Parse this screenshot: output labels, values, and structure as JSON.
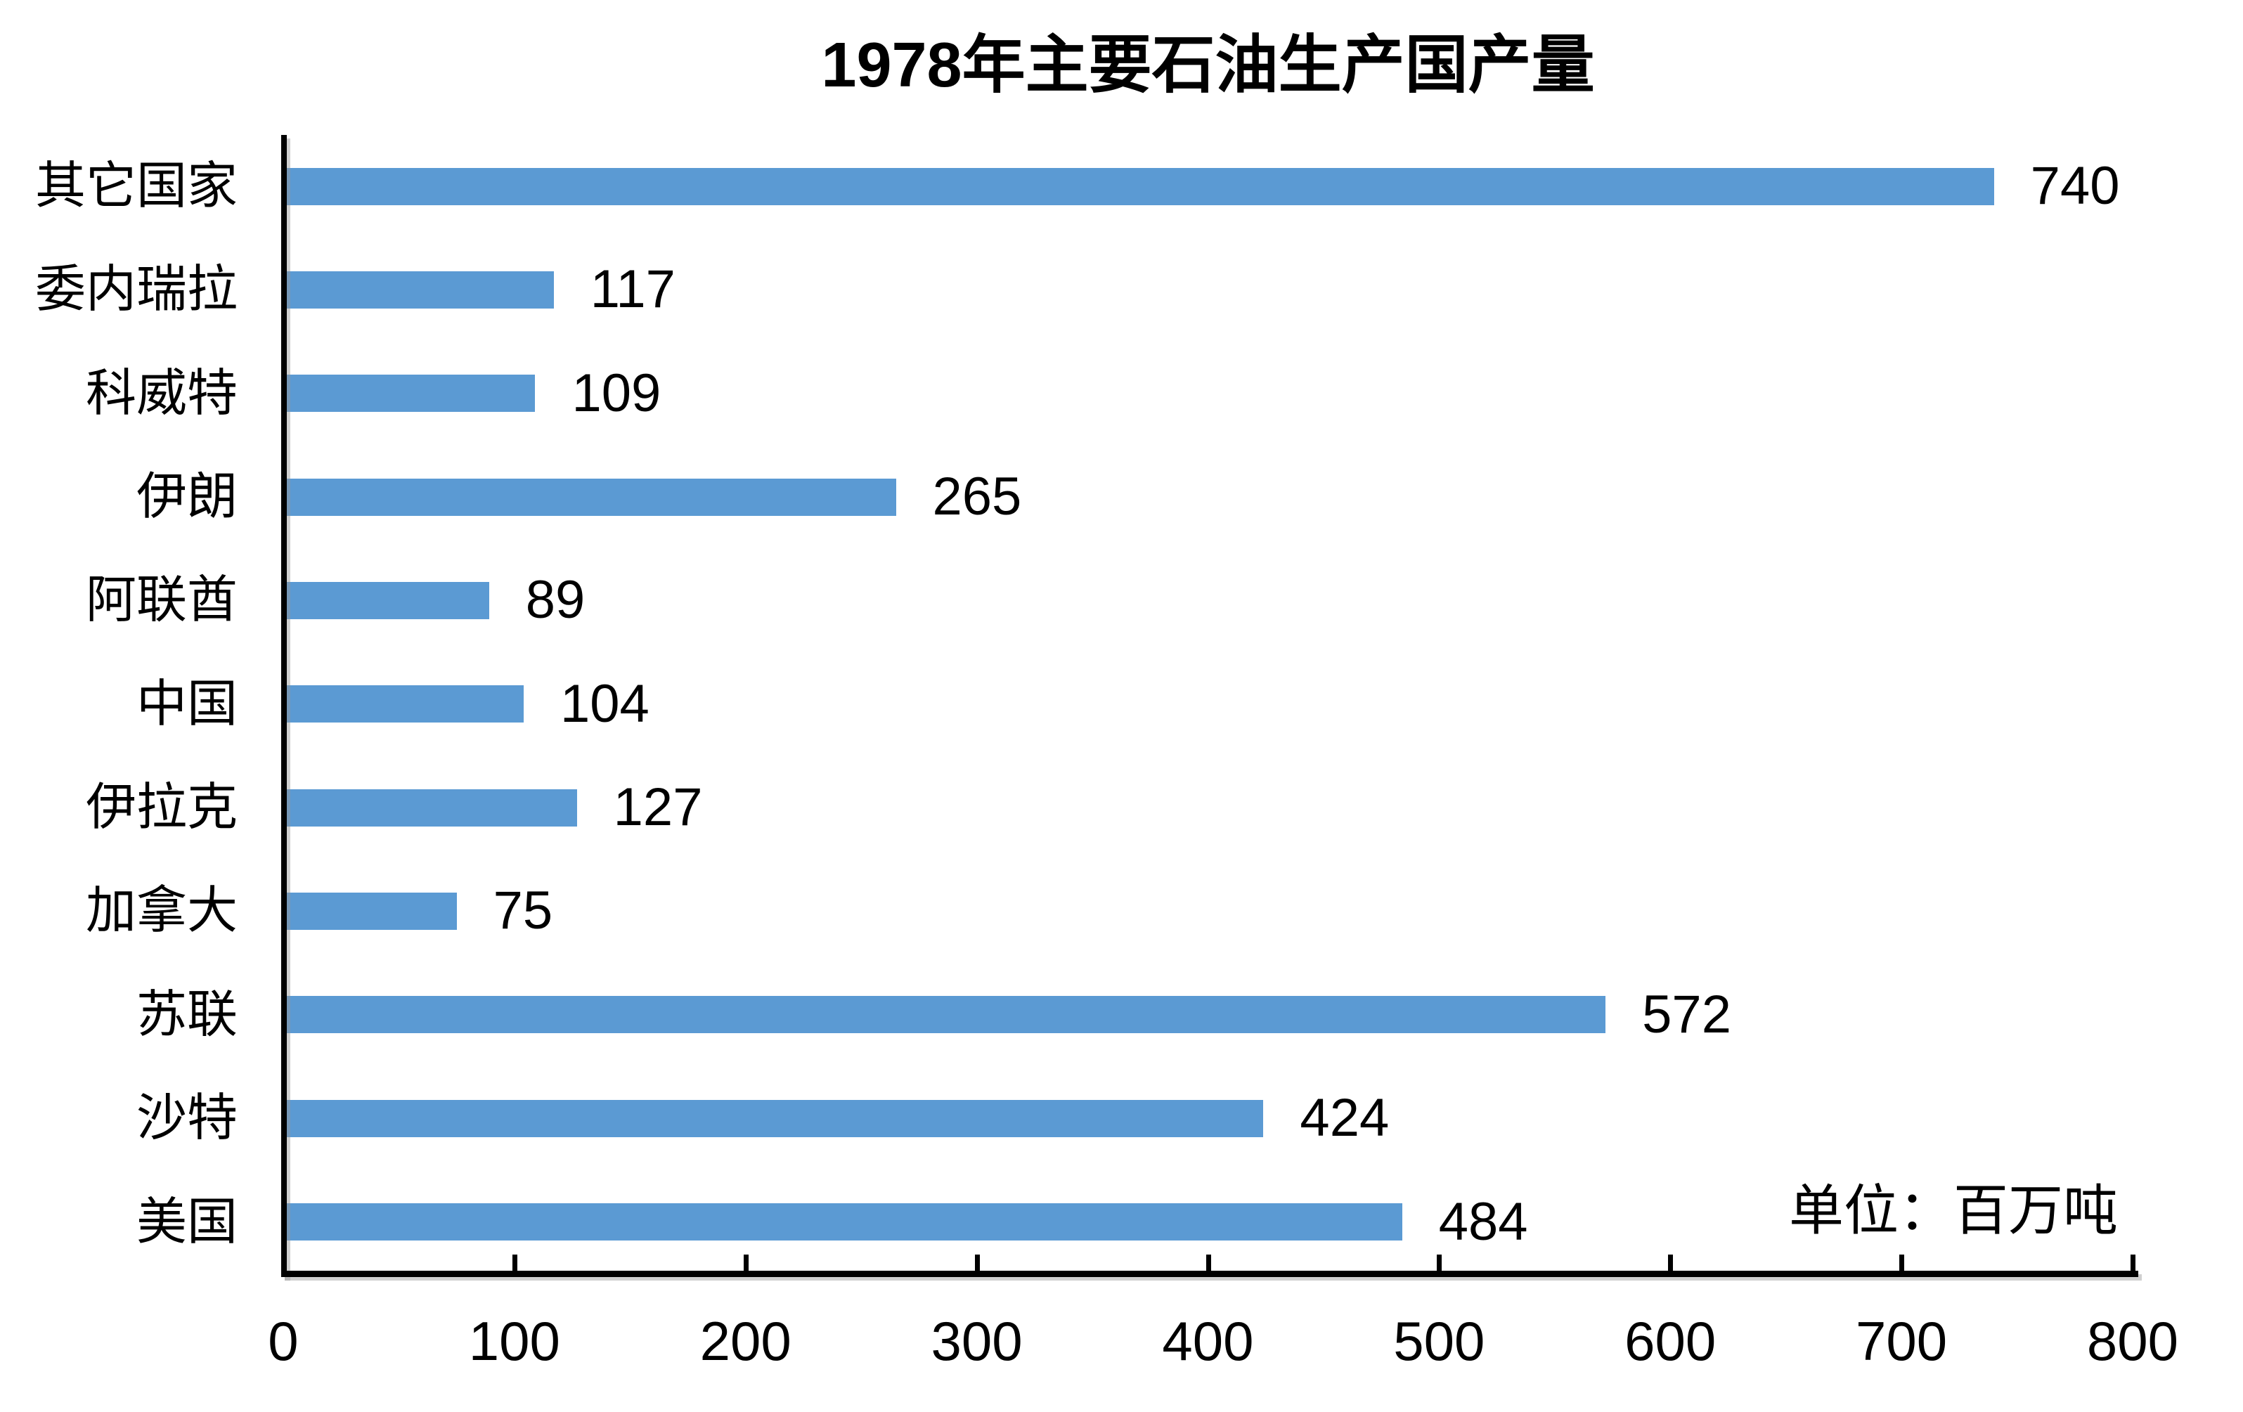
{
  "chart_data": {
    "type": "bar",
    "orientation": "horizontal",
    "title": "1978年主要石油生产国产量",
    "unit_note": "单位：百万吨",
    "categories": [
      "其它国家",
      "委内瑞拉",
      "科威特",
      "伊朗",
      "阿联酋",
      "中国",
      "伊拉克",
      "加拿大",
      "苏联",
      "沙特",
      "美国"
    ],
    "values": [
      740,
      117,
      109,
      265,
      89,
      104,
      127,
      75,
      572,
      424,
      484
    ],
    "xlabel": "",
    "ylabel": "",
    "xlim": [
      0,
      800
    ],
    "x_ticks": [
      0,
      100,
      200,
      300,
      400,
      500,
      600,
      700,
      800
    ],
    "value_labels_shown": true,
    "grid": false,
    "legend_position": "none",
    "bar_color": "#5B9AD3",
    "axis_color": "#000000",
    "text_color": "#000000",
    "background_color": "#FFFFFF"
  }
}
